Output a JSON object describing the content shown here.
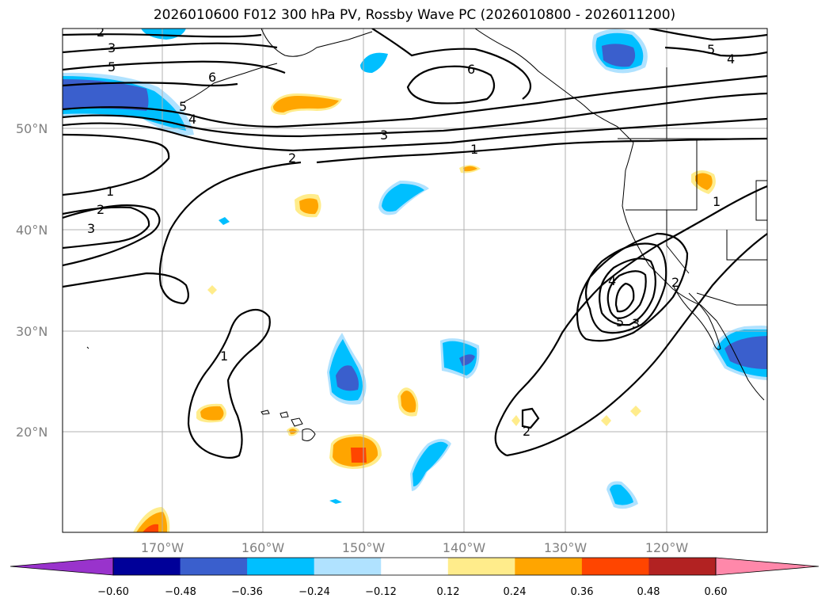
{
  "title": "2026010600 F012 300 hPa PV, Rossby Wave PC (2026010800 - 2026011200)",
  "lat_labels": [
    "50°N",
    "40°N",
    "30°N",
    "20°N"
  ],
  "lon_labels": [
    "170°W",
    "160°W",
    "150°W",
    "140°W",
    "130°W",
    "120°W"
  ],
  "colorbar": {
    "ticks": [
      "−0.60",
      "−0.48",
      "−0.36",
      "−0.24",
      "−0.12",
      "0.12",
      "0.24",
      "0.36",
      "0.48",
      "0.60"
    ],
    "colors": [
      "#9933cc",
      "#000099",
      "#3a5fcd",
      "#00bfff",
      "#b0e2ff",
      "#ffffff",
      "#ffec8b",
      "#ffa500",
      "#ff4500",
      "#b22222",
      "#ff88aa"
    ]
  },
  "contour_labels": [
    "2",
    "3",
    "5",
    "6",
    "5",
    "4",
    "6",
    "5",
    "4",
    "3",
    "1",
    "2",
    "1",
    "2",
    "3",
    "1",
    "1",
    "4",
    "5",
    "3",
    "2",
    "2"
  ]
}
